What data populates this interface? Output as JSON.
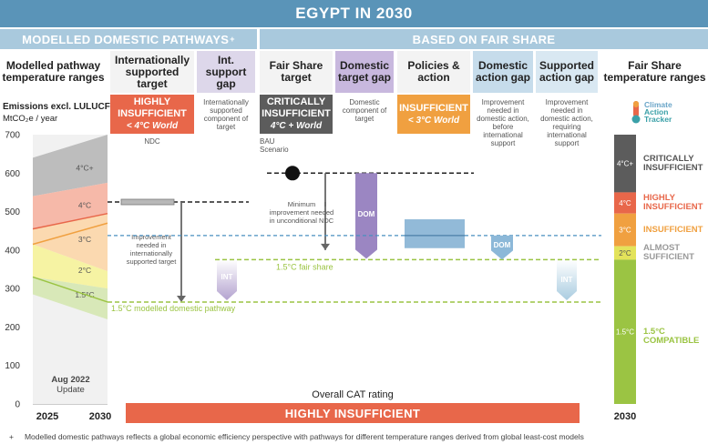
{
  "title": "EGYPT IN 2030",
  "section_left": "MODELLED DOMESTIC PATHWAYS",
  "section_left_mark": "+",
  "section_right": "BASED ON FAIR SHARE",
  "columns": {
    "modelled": "Modelled pathway temperature ranges",
    "intl_target": "Internationally supported target",
    "int_gap": "Int. support gap",
    "fair_target": "Fair Share target",
    "dom_gap": "Domestic target gap",
    "policies": "Policies & action",
    "dom_action_gap": "Domestic action gap",
    "supported_gap": "Supported action gap",
    "fs_ranges": "Fair Share temperature ranges"
  },
  "badges": {
    "intl": {
      "rating": "HIGHLY INSUFFICIENT",
      "world": "< 4°C World",
      "color": "#e8674a"
    },
    "fair": {
      "rating": "CRITICALLY INSUFFICIENT",
      "world": "4°C + World",
      "color": "#5c5c5c"
    },
    "policies": {
      "rating": "INSUFFICIENT",
      "world": "< 3°C World",
      "color": "#f0a040"
    }
  },
  "notes": {
    "int_gap": "Internationally supported component of target",
    "dom_gap": "Domestic component of target",
    "dom_action_gap": "Improvement needed in domestic action, before international support",
    "supported_gap": "Improvement needed in domestic action, requiring international support",
    "ndc": "NDC",
    "bau": "BAU Scenario",
    "improvement_intl": "Improvement needed in internationally supported target",
    "min_improvement": "Minimum improvement needed in unconditional NDC",
    "fair_share_line": "1.5°C fair share",
    "modelled_line": "1.5°C modelled domestic pathway",
    "dom": "DOM",
    "int": "INT"
  },
  "logo": {
    "line1": "Climate",
    "line2": "Action",
    "line3": "Tracker"
  },
  "axis": {
    "title": "Emissions excl. LULUCF",
    "unit": "MtCO₂e / year",
    "ticks": [
      "700",
      "600",
      "500",
      "400",
      "300",
      "200",
      "100",
      "0"
    ],
    "years": [
      "2025",
      "2030"
    ]
  },
  "update": {
    "line1": "Aug 2022",
    "line2": "Update"
  },
  "overall": {
    "label": "Overall CAT rating",
    "rating": "HIGHLY INSUFFICIENT",
    "color": "#e8674a"
  },
  "fs_bar_year": "2030",
  "fs_ranges": [
    {
      "label": "4°C+",
      "rating": "CRITICALLY INSUFFICIENT",
      "from": 550,
      "to": 700,
      "color": "#5c5c5c"
    },
    {
      "label": "4°C",
      "rating": "HIGHLY INSUFFICIENT",
      "from": 495,
      "to": 550,
      "color": "#e8674a"
    },
    {
      "label": "3°C",
      "rating": "INSUFFICIENT",
      "from": 410,
      "to": 495,
      "color": "#f0a040"
    },
    {
      "label": "2°C",
      "rating": "ALMOST SUFFICIENT",
      "from": 375,
      "to": 410,
      "color": "#e3e35a"
    },
    {
      "label": "1.5°C",
      "rating": "1.5°C COMPATIBLE",
      "from": 0,
      "to": 375,
      "color": "#9bc443"
    }
  ],
  "footer_mark": "+",
  "footer": "Modelled domestic pathways reflects a global economic efficiency perspective with pathways for different temperature ranges derived from global least-cost models",
  "chart_data": {
    "type": "bar",
    "ylabel": "Emissions excl. LULUCF MtCO₂e / year",
    "ylim": [
      0,
      700
    ],
    "ndc_target": 525,
    "bau_scenario": 600,
    "fair_share_1_5c": 375,
    "modelled_1_5c_2030": 265,
    "current_policy_range": [
      405,
      480
    ],
    "modelled_pathway_bands": [
      {
        "name": "4°C+",
        "y2025": [
          540,
          640
        ],
        "y2030": [
          575,
          700
        ]
      },
      {
        "name": "4°C",
        "y2025": [
          455,
          540
        ],
        "y2030": [
          495,
          575
        ]
      },
      {
        "name": "3°C",
        "y2025": [
          415,
          455
        ],
        "y2030": [
          345,
          495
        ]
      },
      {
        "name": "2°C",
        "y2025": [
          330,
          415
        ],
        "y2030": [
          300,
          345
        ]
      },
      {
        "name": "1.5°C",
        "y2025": [
          285,
          330
        ],
        "y2030": [
          220,
          300
        ]
      }
    ]
  }
}
